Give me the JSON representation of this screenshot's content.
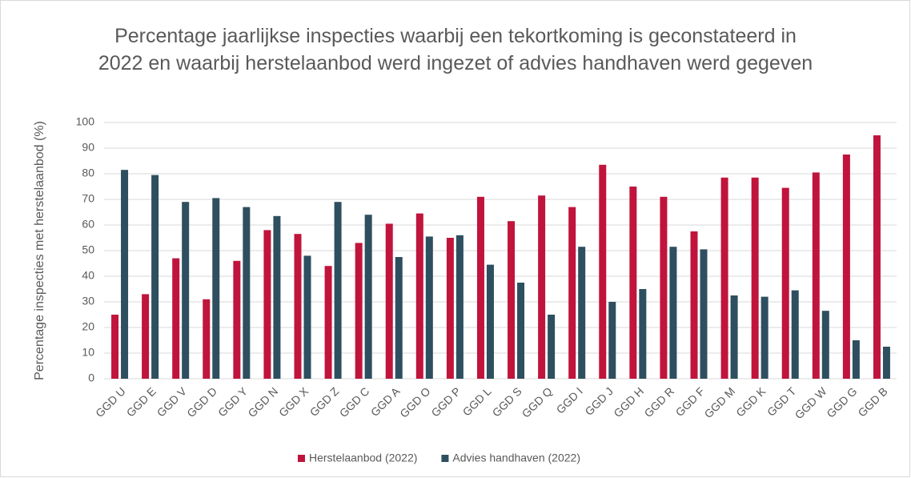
{
  "chart_data": {
    "type": "bar",
    "title": "Percentage jaarlijkse inspecties waarbij een tekortkoming is geconstateerd in 2022 en waarbij herstelaanbod werd ingezet of advies handhaven werd gegeven",
    "y_label": "Percentage inspecties met herstelaanbod (%)",
    "categories": [
      "GGD U",
      "GGD E",
      "GGD V",
      "GGD D",
      "GGD Y",
      "GGD N",
      "GGD X",
      "GGD Z",
      "GGD C",
      "GGD A",
      "GGD O",
      "GGD P",
      "GGD L",
      "GGD S",
      "GGD Q",
      "GGD I",
      "GGD J",
      "GGD H",
      "GGD R",
      "GGD F",
      "GGD M",
      "GGD K",
      "GGD T",
      "GGD W",
      "GGD G",
      "GGD B"
    ],
    "series": [
      {
        "name": "Herstelaanbod (2022)",
        "color": "#c0143c",
        "values": [
          25,
          33,
          47,
          31,
          46,
          58,
          56.5,
          44,
          53,
          60.5,
          64.5,
          55,
          71,
          61.5,
          71.5,
          67,
          83.5,
          75,
          71,
          57.5,
          78.5,
          78.5,
          74.5,
          80.5,
          87.5,
          95
        ]
      },
      {
        "name": "Advies handhaven (2022)",
        "color": "#2e4f5f",
        "values": [
          81.5,
          79.5,
          69,
          70.5,
          67,
          63.5,
          48,
          69,
          64,
          47.5,
          55.5,
          56,
          44.5,
          37.5,
          25,
          51.5,
          30,
          35,
          51.5,
          50.5,
          32.5,
          32,
          34.5,
          26.5,
          15,
          12.5
        ]
      }
    ],
    "ylim": [
      0,
      100
    ],
    "yticks": [
      0,
      10,
      20,
      30,
      40,
      50,
      60,
      70,
      80,
      90,
      100
    ],
    "grid": true,
    "legend": "bottom"
  }
}
